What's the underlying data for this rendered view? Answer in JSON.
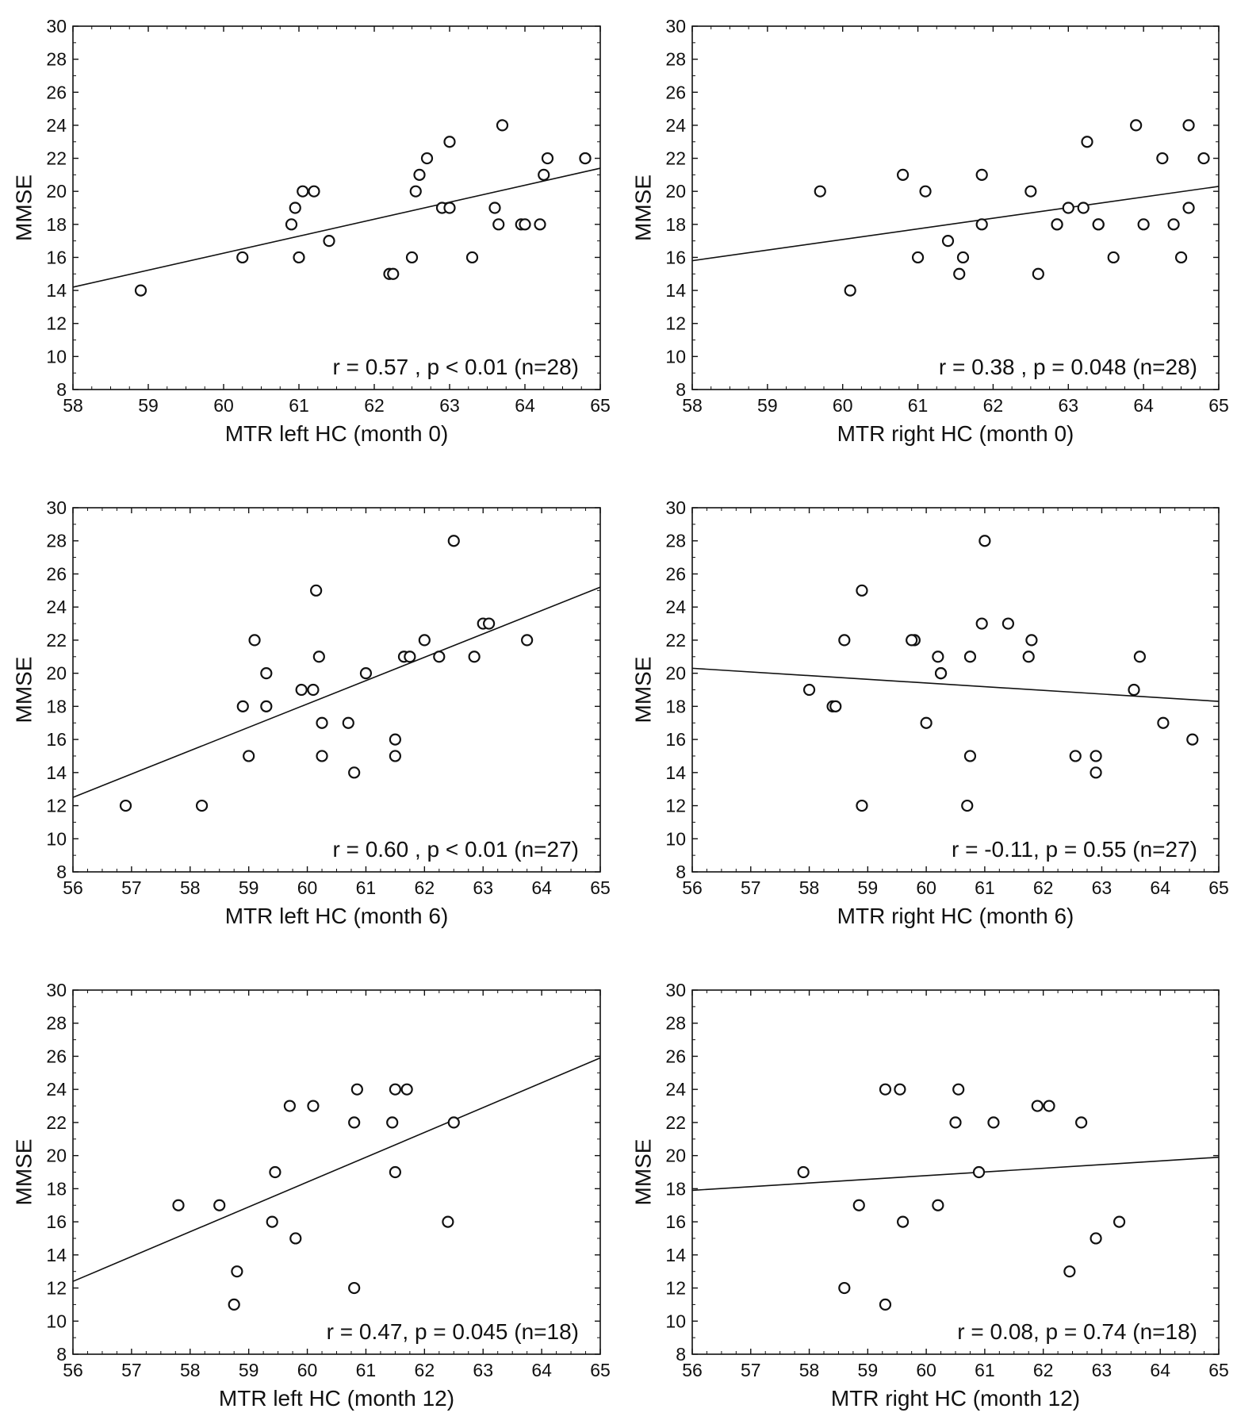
{
  "chart_data": [
    {
      "type": "scatter",
      "xlabel": "MTR left HC (month 0)",
      "ylabel": "MMSE",
      "xlim": [
        58,
        65
      ],
      "ylim": [
        8,
        30
      ],
      "xticks": [
        58,
        59,
        60,
        61,
        62,
        63,
        64,
        65
      ],
      "yticks": [
        8,
        10,
        12,
        14,
        16,
        18,
        20,
        22,
        24,
        26,
        28,
        30
      ],
      "annotation": "r = 0.57 , p < 0.01 (n=28)",
      "fit_line": [
        [
          58,
          14.2
        ],
        [
          65,
          21.4
        ]
      ],
      "points": [
        [
          58.9,
          14
        ],
        [
          60.25,
          16
        ],
        [
          60.9,
          18
        ],
        [
          60.95,
          19
        ],
        [
          61.0,
          16
        ],
        [
          61.05,
          20
        ],
        [
          61.2,
          20
        ],
        [
          61.4,
          17
        ],
        [
          62.2,
          15
        ],
        [
          62.25,
          15
        ],
        [
          62.5,
          16
        ],
        [
          62.55,
          20
        ],
        [
          62.6,
          21
        ],
        [
          62.7,
          22
        ],
        [
          62.9,
          19
        ],
        [
          63.0,
          19
        ],
        [
          63.0,
          23
        ],
        [
          63.3,
          16
        ],
        [
          63.6,
          19
        ],
        [
          63.65,
          18
        ],
        [
          63.7,
          24
        ],
        [
          63.95,
          18
        ],
        [
          64.0,
          18
        ],
        [
          64.2,
          18
        ],
        [
          64.25,
          21
        ],
        [
          64.3,
          22
        ],
        [
          64.8,
          22
        ],
        [
          64.8,
          22
        ]
      ]
    },
    {
      "type": "scatter",
      "xlabel": "MTR right HC (month 0)",
      "ylabel": "MMSE",
      "xlim": [
        58,
        65
      ],
      "ylim": [
        8,
        30
      ],
      "xticks": [
        58,
        59,
        60,
        61,
        62,
        63,
        64,
        65
      ],
      "yticks": [
        8,
        10,
        12,
        14,
        16,
        18,
        20,
        22,
        24,
        26,
        28,
        30
      ],
      "annotation": "r = 0.38 , p = 0.048 (n=28)",
      "fit_line": [
        [
          58,
          15.8
        ],
        [
          65,
          20.3
        ]
      ],
      "points": [
        [
          59.7,
          20
        ],
        [
          60.1,
          14
        ],
        [
          60.8,
          21
        ],
        [
          61.0,
          16
        ],
        [
          61.1,
          20
        ],
        [
          61.4,
          17
        ],
        [
          61.55,
          15
        ],
        [
          61.6,
          16
        ],
        [
          61.85,
          21
        ],
        [
          61.85,
          18
        ],
        [
          62.5,
          20
        ],
        [
          62.6,
          15
        ],
        [
          62.85,
          18
        ],
        [
          63.0,
          19
        ],
        [
          63.2,
          19
        ],
        [
          63.25,
          23
        ],
        [
          63.4,
          18
        ],
        [
          63.6,
          16
        ],
        [
          63.9,
          24
        ],
        [
          64.0,
          18
        ],
        [
          64.25,
          22
        ],
        [
          64.4,
          18
        ],
        [
          64.5,
          16
        ],
        [
          64.6,
          19
        ],
        [
          64.6,
          24
        ],
        [
          64.8,
          22
        ],
        [
          62.85,
          18
        ],
        [
          63.4,
          18
        ]
      ]
    },
    {
      "type": "scatter",
      "xlabel": "MTR left HC (month 6)",
      "ylabel": "MMSE",
      "xlim": [
        56,
        65
      ],
      "ylim": [
        8,
        30
      ],
      "xticks": [
        56,
        57,
        58,
        59,
        60,
        61,
        62,
        63,
        64,
        65
      ],
      "yticks": [
        8,
        10,
        12,
        14,
        16,
        18,
        20,
        22,
        24,
        26,
        28,
        30
      ],
      "annotation": "r = 0.60 , p < 0.01 (n=27)",
      "fit_line": [
        [
          56,
          12.5
        ],
        [
          65,
          25.2
        ]
      ],
      "points": [
        [
          56.9,
          12
        ],
        [
          58.2,
          12
        ],
        [
          58.9,
          18
        ],
        [
          59.0,
          15
        ],
        [
          59.1,
          22
        ],
        [
          59.3,
          20
        ],
        [
          59.3,
          18
        ],
        [
          59.9,
          19
        ],
        [
          60.1,
          19
        ],
        [
          60.15,
          25
        ],
        [
          60.2,
          21
        ],
        [
          60.25,
          17
        ],
        [
          60.25,
          15
        ],
        [
          60.7,
          17
        ],
        [
          60.8,
          14
        ],
        [
          61.0,
          20
        ],
        [
          61.5,
          16
        ],
        [
          61.5,
          15
        ],
        [
          61.65,
          21
        ],
        [
          61.75,
          21
        ],
        [
          62.0,
          22
        ],
        [
          62.25,
          21
        ],
        [
          62.5,
          28
        ],
        [
          62.85,
          21
        ],
        [
          63.0,
          23
        ],
        [
          63.1,
          23
        ],
        [
          63.75,
          22
        ]
      ]
    },
    {
      "type": "scatter",
      "xlabel": "MTR right HC (month 6)",
      "ylabel": "MMSE",
      "xlim": [
        56,
        65
      ],
      "ylim": [
        8,
        30
      ],
      "xticks": [
        56,
        57,
        58,
        59,
        60,
        61,
        62,
        63,
        64,
        65
      ],
      "yticks": [
        8,
        10,
        12,
        14,
        16,
        18,
        20,
        22,
        24,
        26,
        28,
        30
      ],
      "annotation": "r = -0.11, p = 0.55 (n=27)",
      "fit_line": [
        [
          56,
          20.3
        ],
        [
          65,
          18.3
        ]
      ],
      "points": [
        [
          58.0,
          19
        ],
        [
          58.4,
          18
        ],
        [
          58.45,
          18
        ],
        [
          58.6,
          22
        ],
        [
          58.9,
          25
        ],
        [
          58.9,
          12
        ],
        [
          59.8,
          22
        ],
        [
          60.0,
          17
        ],
        [
          60.2,
          21
        ],
        [
          60.25,
          20
        ],
        [
          60.25,
          20
        ],
        [
          60.7,
          12
        ],
        [
          60.75,
          21
        ],
        [
          60.75,
          15
        ],
        [
          60.95,
          23
        ],
        [
          61.0,
          28
        ],
        [
          61.4,
          23
        ],
        [
          61.75,
          21
        ],
        [
          61.8,
          22
        ],
        [
          62.55,
          15
        ],
        [
          62.9,
          14
        ],
        [
          62.9,
          15
        ],
        [
          63.55,
          19
        ],
        [
          63.65,
          21
        ],
        [
          64.05,
          17
        ],
        [
          64.55,
          16
        ],
        [
          59.75,
          22
        ]
      ]
    },
    {
      "type": "scatter",
      "xlabel": "MTR left HC (month 12)",
      "ylabel": "MMSE",
      "xlim": [
        56,
        65
      ],
      "ylim": [
        8,
        30
      ],
      "xticks": [
        56,
        57,
        58,
        59,
        60,
        61,
        62,
        63,
        64,
        65
      ],
      "yticks": [
        8,
        10,
        12,
        14,
        16,
        18,
        20,
        22,
        24,
        26,
        28,
        30
      ],
      "annotation": "r = 0.47, p = 0.045 (n=18)",
      "fit_line": [
        [
          56,
          12.4
        ],
        [
          65,
          25.9
        ]
      ],
      "points": [
        [
          57.8,
          17
        ],
        [
          58.5,
          17
        ],
        [
          58.75,
          11
        ],
        [
          58.8,
          13
        ],
        [
          59.4,
          16
        ],
        [
          59.45,
          19
        ],
        [
          59.7,
          23
        ],
        [
          59.8,
          15
        ],
        [
          60.1,
          23
        ],
        [
          60.8,
          22
        ],
        [
          60.8,
          12
        ],
        [
          60.85,
          24
        ],
        [
          61.45,
          22
        ],
        [
          61.5,
          24
        ],
        [
          61.5,
          19
        ],
        [
          61.7,
          24
        ],
        [
          62.4,
          16
        ],
        [
          62.5,
          22
        ]
      ]
    },
    {
      "type": "scatter",
      "xlabel": "MTR right HC (month 12)",
      "ylabel": "MMSE",
      "xlim": [
        56,
        65
      ],
      "ylim": [
        8,
        30
      ],
      "xticks": [
        56,
        57,
        58,
        59,
        60,
        61,
        62,
        63,
        64,
        65
      ],
      "yticks": [
        8,
        10,
        12,
        14,
        16,
        18,
        20,
        22,
        24,
        26,
        28,
        30
      ],
      "annotation": "r = 0.08, p = 0.74 (n=18)",
      "fit_line": [
        [
          56,
          17.9
        ],
        [
          65,
          19.9
        ]
      ],
      "points": [
        [
          57.9,
          19
        ],
        [
          58.6,
          12
        ],
        [
          58.85,
          17
        ],
        [
          59.3,
          24
        ],
        [
          59.3,
          11
        ],
        [
          59.55,
          24
        ],
        [
          59.6,
          16
        ],
        [
          60.2,
          17
        ],
        [
          60.5,
          22
        ],
        [
          60.55,
          24
        ],
        [
          60.9,
          19
        ],
        [
          61.15,
          22
        ],
        [
          61.9,
          23
        ],
        [
          62.1,
          23
        ],
        [
          62.45,
          13
        ],
        [
          62.65,
          22
        ],
        [
          62.9,
          15
        ],
        [
          63.3,
          16
        ]
      ]
    }
  ]
}
